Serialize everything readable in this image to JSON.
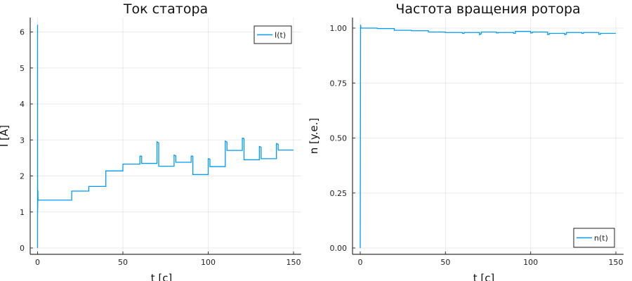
{
  "chart_data": [
    {
      "type": "line",
      "title": "Ток статора",
      "xlabel": "t [c]",
      "ylabel": "I [A]",
      "xlim": [
        -4,
        154
      ],
      "ylim": [
        -0.2,
        6.4
      ],
      "xticks": [
        0,
        50,
        100,
        150
      ],
      "yticks": [
        0,
        1,
        2,
        3,
        4,
        5,
        6
      ],
      "xtick_labels": [
        "0",
        "50",
        "100",
        "150"
      ],
      "ytick_labels": [
        "0",
        "1",
        "2",
        "3",
        "4",
        "5",
        "6"
      ],
      "grid": true,
      "legend_position": "top-right",
      "color": "#009af9",
      "series": [
        {
          "name": "I(t)",
          "x": [
            0,
            0,
            0.05,
            0.2,
            0.3,
            20,
            20,
            30,
            30,
            40,
            40,
            50,
            50,
            60,
            60,
            61,
            61,
            70,
            70,
            71,
            71,
            80,
            80,
            81,
            81,
            90,
            90,
            91,
            91,
            100,
            100,
            101,
            101,
            110,
            110,
            111,
            111,
            120,
            120,
            121,
            121,
            130,
            130,
            131,
            131,
            140,
            140,
            141,
            141,
            150
          ],
          "y": [
            0,
            6.2,
            1.0,
            1.6,
            1.33,
            1.33,
            1.58,
            1.58,
            1.71,
            1.71,
            2.14,
            2.14,
            2.33,
            2.33,
            2.55,
            2.55,
            2.35,
            2.35,
            2.95,
            2.92,
            2.27,
            2.27,
            2.58,
            2.56,
            2.38,
            2.38,
            2.55,
            2.55,
            2.04,
            2.04,
            2.48,
            2.47,
            2.26,
            2.26,
            2.97,
            2.94,
            2.71,
            2.71,
            3.05,
            3.04,
            2.45,
            2.45,
            2.82,
            2.8,
            2.48,
            2.48,
            2.9,
            2.88,
            2.72,
            2.72
          ]
        }
      ]
    },
    {
      "type": "line",
      "title": "Частота вращения ротора",
      "xlabel": "t [c]",
      "ylabel": "n [y.e.]",
      "xlim": [
        -3,
        154
      ],
      "ylim": [
        -0.03,
        1.05
      ],
      "xticks": [
        0,
        50,
        100,
        150
      ],
      "yticks": [
        0,
        0.25,
        0.5,
        0.75,
        1.0
      ],
      "xtick_labels": [
        "0",
        "50",
        "100",
        "150"
      ],
      "ytick_labels": [
        "0.00",
        "0.25",
        "0.50",
        "0.75",
        "1.00"
      ],
      "grid": true,
      "legend_position": "bottom-right",
      "color": "#009af9",
      "series": [
        {
          "name": "n(t)",
          "x": [
            0,
            0.2,
            0.4,
            10,
            10,
            20,
            20,
            30,
            30,
            40,
            40,
            50,
            50,
            60,
            60,
            61,
            61,
            70,
            70,
            71,
            71,
            80,
            80,
            81,
            81,
            90,
            90,
            91,
            91,
            100,
            100,
            101,
            101,
            110,
            110,
            111,
            111,
            120,
            120,
            121,
            121,
            130,
            130,
            131,
            131,
            140,
            140,
            141,
            141,
            150
          ],
          "y": [
            0,
            1.015,
            1.0,
            1.0,
            0.998,
            0.998,
            0.99,
            0.99,
            0.988,
            0.988,
            0.982,
            0.982,
            0.98,
            0.98,
            0.976,
            0.976,
            0.98,
            0.98,
            0.97,
            0.974,
            0.982,
            0.982,
            0.978,
            0.978,
            0.98,
            0.98,
            0.976,
            0.976,
            0.985,
            0.985,
            0.978,
            0.978,
            0.982,
            0.982,
            0.97,
            0.972,
            0.976,
            0.976,
            0.97,
            0.972,
            0.98,
            0.98,
            0.976,
            0.976,
            0.98,
            0.98,
            0.972,
            0.972,
            0.976,
            0.976
          ]
        }
      ]
    }
  ]
}
